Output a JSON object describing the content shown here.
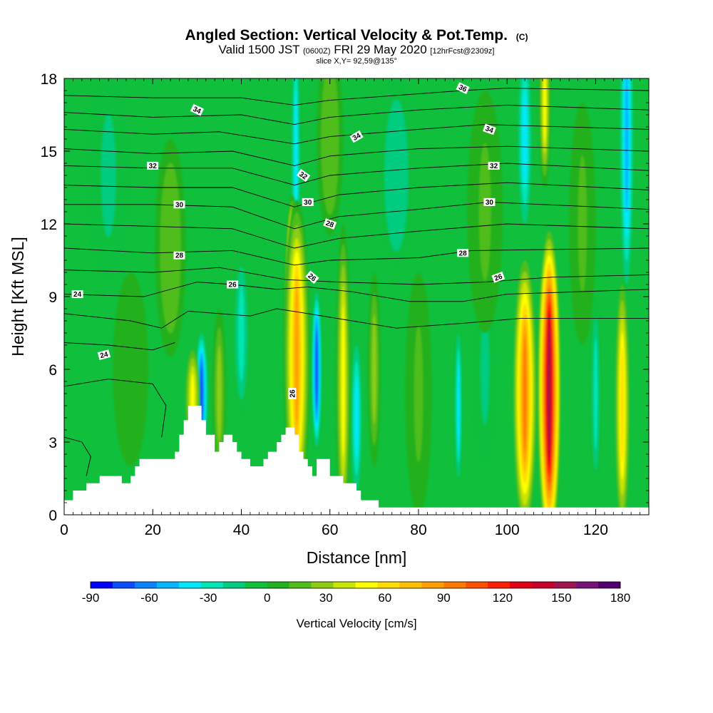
{
  "chart_data": {
    "type": "heatmap",
    "title": "Angled Section: Vertical Velocity & Pot.Temp.",
    "title_suffix": "(C)",
    "subtitle_main": "Valid 1500 JST",
    "subtitle_utc": "(0600Z)",
    "subtitle_date": "FRI 29 May 2020",
    "subtitle_fcst": "[12hrFcst@2309z]",
    "slice_label": "slice X,Y= 92,59@135°",
    "xlabel": "Distance [nm]",
    "ylabel": "Height [Kft MSL]",
    "xlim": [
      0,
      132
    ],
    "ylim": [
      0,
      18
    ],
    "x_ticks": [
      0,
      20,
      40,
      60,
      80,
      100,
      120
    ],
    "y_ticks": [
      0,
      3,
      6,
      9,
      12,
      15,
      18
    ],
    "colorbar": {
      "label": "Vertical Velocity [cm/s]",
      "range": [
        -90,
        180
      ],
      "ticks": [
        -90,
        -60,
        -30,
        0,
        30,
        60,
        90,
        120,
        150,
        180
      ],
      "colors": [
        "#0000ff",
        "#0a4cff",
        "#0a82ff",
        "#06b4ff",
        "#00e8ff",
        "#00e6b4",
        "#00cc80",
        "#10bf3c",
        "#22b11e",
        "#50bd1a",
        "#8ccd12",
        "#c8e600",
        "#ffff00",
        "#ffdc00",
        "#ffbe00",
        "#ffa000",
        "#ff7800",
        "#ff5000",
        "#ff1e00",
        "#e10014",
        "#c8002a",
        "#a01450",
        "#781478",
        "#50006e"
      ]
    },
    "terrain": [
      [
        0,
        0.6
      ],
      [
        2,
        0.6
      ],
      [
        2,
        1.0
      ],
      [
        5,
        1.0
      ],
      [
        5,
        1.3
      ],
      [
        8,
        1.3
      ],
      [
        8,
        1.6
      ],
      [
        13,
        1.6
      ],
      [
        13,
        1.3
      ],
      [
        15,
        1.3
      ],
      [
        15,
        1.6
      ],
      [
        16,
        1.6
      ],
      [
        16,
        2.0
      ],
      [
        17,
        2.0
      ],
      [
        17,
        2.3
      ],
      [
        25,
        2.3
      ],
      [
        25,
        2.6
      ],
      [
        26,
        2.6
      ],
      [
        26,
        3.3
      ],
      [
        27,
        3.3
      ],
      [
        27,
        3.9
      ],
      [
        28,
        3.9
      ],
      [
        28,
        4.5
      ],
      [
        31,
        4.5
      ],
      [
        31,
        3.9
      ],
      [
        32,
        3.9
      ],
      [
        32,
        3.3
      ],
      [
        34,
        3.3
      ],
      [
        34,
        2.6
      ],
      [
        35,
        2.6
      ],
      [
        35,
        3.0
      ],
      [
        36,
        3.0
      ],
      [
        36,
        3.3
      ],
      [
        38,
        3.3
      ],
      [
        38,
        3.0
      ],
      [
        39,
        3.0
      ],
      [
        39,
        2.6
      ],
      [
        40,
        2.6
      ],
      [
        40,
        2.3
      ],
      [
        42,
        2.3
      ],
      [
        42,
        2.0
      ],
      [
        45,
        2.0
      ],
      [
        45,
        2.3
      ],
      [
        46,
        2.3
      ],
      [
        46,
        2.6
      ],
      [
        48,
        2.6
      ],
      [
        48,
        3.0
      ],
      [
        49,
        3.0
      ],
      [
        49,
        3.3
      ],
      [
        50,
        3.3
      ],
      [
        50,
        3.6
      ],
      [
        52,
        3.6
      ],
      [
        52,
        3.3
      ],
      [
        53,
        3.3
      ],
      [
        53,
        2.6
      ],
      [
        54,
        2.6
      ],
      [
        54,
        2.3
      ],
      [
        55,
        2.3
      ],
      [
        55,
        2.0
      ],
      [
        56,
        2.0
      ],
      [
        56,
        1.6
      ],
      [
        57,
        1.6
      ],
      [
        57,
        2.3
      ],
      [
        60,
        2.3
      ],
      [
        60,
        1.6
      ],
      [
        63,
        1.6
      ],
      [
        63,
        1.3
      ],
      [
        66,
        1.3
      ],
      [
        66,
        1.0
      ],
      [
        67,
        1.0
      ],
      [
        67,
        0.6
      ],
      [
        71,
        0.6
      ],
      [
        71,
        0.3
      ],
      [
        132,
        0.3
      ]
    ],
    "updrafts": [
      {
        "x": 51.5,
        "z": 8.0,
        "w": 1.8,
        "h": 5.2,
        "v": 165
      },
      {
        "x": 52.5,
        "z": 6.5,
        "w": 3.0,
        "h": 6.5,
        "v": 85
      },
      {
        "x": 63,
        "z": 5.5,
        "w": 1.7,
        "h": 6.5,
        "v": 55
      },
      {
        "x": 109.5,
        "z": 5.2,
        "w": 2.6,
        "h": 6.5,
        "v": 150
      },
      {
        "x": 104,
        "z": 5.0,
        "w": 2.6,
        "h": 5.5,
        "v": 95
      },
      {
        "x": 126,
        "z": 4.5,
        "w": 1.6,
        "h": 5.0,
        "v": 60
      },
      {
        "x": 108.5,
        "z": 17.0,
        "w": 1.4,
        "h": 3.5,
        "v": 55
      },
      {
        "x": 29,
        "z": 4.8,
        "w": 1.6,
        "h": 2.0,
        "v": 45
      },
      {
        "x": 35,
        "z": 5.0,
        "w": 1.6,
        "h": 3.5,
        "v": 28
      },
      {
        "x": 70,
        "z": 6.0,
        "w": 1.5,
        "h": 4.0,
        "v": 25
      },
      {
        "x": 24,
        "z": 11.0,
        "w": 3.5,
        "h": 4.5,
        "v": 18
      },
      {
        "x": 60,
        "z": 15.5,
        "w": 3.0,
        "h": 4.0,
        "v": 18
      },
      {
        "x": 95,
        "z": 12.5,
        "w": 4.0,
        "h": 5.0,
        "v": 15
      },
      {
        "x": 117,
        "z": 12.0,
        "w": 3.0,
        "h": 5.0,
        "v": 15
      },
      {
        "x": 80,
        "z": 5.0,
        "w": 3.0,
        "h": 5.0,
        "v": 12
      },
      {
        "x": 15,
        "z": 6.0,
        "w": 4.0,
        "h": 4.0,
        "v": 10
      }
    ],
    "downdrafts": [
      {
        "x": 31,
        "z": 5.0,
        "w": 1.4,
        "h": 2.5,
        "v": -70
      },
      {
        "x": 57,
        "z": 6.0,
        "w": 1.3,
        "h": 3.5,
        "v": -75
      },
      {
        "x": 52.3,
        "z": 14.5,
        "w": 1.2,
        "h": 6.0,
        "v": -45
      },
      {
        "x": 127,
        "z": 15.5,
        "w": 1.5,
        "h": 6.0,
        "v": -50
      },
      {
        "x": 89,
        "z": 4.5,
        "w": 1.0,
        "h": 3.5,
        "v": -40
      },
      {
        "x": 104,
        "z": 15.5,
        "w": 1.5,
        "h": 3.5,
        "v": -35
      },
      {
        "x": 66,
        "z": 4.0,
        "w": 1.2,
        "h": 3.0,
        "v": -35
      },
      {
        "x": 120,
        "z": 5.0,
        "w": 1.2,
        "h": 4.0,
        "v": -30
      },
      {
        "x": 40,
        "z": 7.5,
        "w": 2.0,
        "h": 3.5,
        "v": -25
      },
      {
        "x": 75,
        "z": 14.0,
        "w": 4.0,
        "h": 4.0,
        "v": -20
      },
      {
        "x": 10,
        "z": 14.0,
        "w": 5.0,
        "h": 4.5,
        "v": -15
      },
      {
        "x": 95,
        "z": 6.0,
        "w": 3.0,
        "h": 4.0,
        "v": -15
      }
    ],
    "isentropes": [
      {
        "theta": 36,
        "pts": [
          [
            0,
            17.3
          ],
          [
            20,
            17.2
          ],
          [
            40,
            17.2
          ],
          [
            52,
            16.9
          ],
          [
            60,
            17.1
          ],
          [
            75,
            17.3
          ],
          [
            90,
            17.5
          ],
          [
            100,
            17.6
          ],
          [
            132,
            17.5
          ]
        ]
      },
      {
        "theta": 35,
        "pts": [
          [
            0,
            16.6
          ],
          [
            20,
            16.4
          ],
          [
            40,
            16.5
          ],
          [
            52,
            16.1
          ],
          [
            60,
            16.4
          ],
          [
            80,
            16.7
          ],
          [
            100,
            16.9
          ],
          [
            132,
            16.7
          ]
        ]
      },
      {
        "theta": 34,
        "pts": [
          [
            0,
            15.9
          ],
          [
            20,
            15.7
          ],
          [
            35,
            15.8
          ],
          [
            52,
            15.3
          ],
          [
            60,
            15.6
          ],
          [
            80,
            15.9
          ],
          [
            95,
            16.1
          ],
          [
            132,
            15.9
          ]
        ]
      },
      {
        "theta": 33,
        "pts": [
          [
            0,
            15.1
          ],
          [
            20,
            14.9
          ],
          [
            38,
            15.0
          ],
          [
            52,
            14.4
          ],
          [
            60,
            14.8
          ],
          [
            80,
            15.1
          ],
          [
            100,
            15.2
          ],
          [
            132,
            15.0
          ]
        ]
      },
      {
        "theta": 32,
        "pts": [
          [
            0,
            14.4
          ],
          [
            20,
            14.3
          ],
          [
            38,
            14.3
          ],
          [
            52,
            13.6
          ],
          [
            60,
            14.0
          ],
          [
            80,
            14.3
          ],
          [
            100,
            14.5
          ],
          [
            132,
            14.2
          ]
        ]
      },
      {
        "theta": 31,
        "pts": [
          [
            0,
            13.6
          ],
          [
            20,
            13.5
          ],
          [
            38,
            13.5
          ],
          [
            52,
            12.7
          ],
          [
            62,
            13.2
          ],
          [
            80,
            13.5
          ],
          [
            100,
            13.7
          ],
          [
            132,
            13.4
          ]
        ]
      },
      {
        "theta": 30,
        "pts": [
          [
            0,
            12.8
          ],
          [
            20,
            12.8
          ],
          [
            38,
            12.7
          ],
          [
            52,
            11.8
          ],
          [
            62,
            12.3
          ],
          [
            80,
            12.6
          ],
          [
            96,
            12.9
          ],
          [
            132,
            12.6
          ]
        ]
      },
      {
        "theta": 29,
        "pts": [
          [
            0,
            12.0
          ],
          [
            20,
            11.9
          ],
          [
            38,
            11.8
          ],
          [
            52,
            11.0
          ],
          [
            62,
            11.4
          ],
          [
            80,
            11.7
          ],
          [
            100,
            12.0
          ],
          [
            132,
            11.8
          ]
        ]
      },
      {
        "theta": 28,
        "pts": [
          [
            0,
            11.0
          ],
          [
            20,
            10.8
          ],
          [
            38,
            10.9
          ],
          [
            52,
            10.3
          ],
          [
            60,
            10.5
          ],
          [
            80,
            10.6
          ],
          [
            92,
            10.9
          ],
          [
            132,
            11.0
          ]
        ]
      },
      {
        "theta": 27,
        "pts": [
          [
            0,
            10.1
          ],
          [
            20,
            10.0
          ],
          [
            35,
            10.2
          ],
          [
            50,
            9.7
          ],
          [
            62,
            9.6
          ],
          [
            80,
            9.5
          ],
          [
            95,
            9.6
          ],
          [
            110,
            9.8
          ],
          [
            132,
            9.9
          ]
        ]
      },
      {
        "theta": 26,
        "pts": [
          [
            0,
            9.1
          ],
          [
            18,
            9.0
          ],
          [
            30,
            9.6
          ],
          [
            38,
            9.5
          ],
          [
            48,
            9.3
          ],
          [
            55,
            9.4
          ],
          [
            65,
            9.2
          ],
          [
            78,
            8.8
          ],
          [
            90,
            8.8
          ],
          [
            100,
            9.1
          ],
          [
            132,
            9.3
          ]
        ]
      },
      {
        "theta": 25,
        "pts": [
          [
            0,
            8.3
          ],
          [
            15,
            8.0
          ],
          [
            22,
            7.7
          ],
          [
            28,
            8.4
          ],
          [
            35,
            8.3
          ],
          [
            42,
            8.2
          ],
          [
            48,
            8.5
          ],
          [
            55,
            8.3
          ],
          [
            65,
            8.0
          ],
          [
            75,
            7.7
          ],
          [
            90,
            7.9
          ],
          [
            103,
            8.1
          ],
          [
            132,
            8.1
          ]
        ]
      },
      {
        "theta": 24,
        "pts": [
          [
            0,
            7.1
          ],
          [
            10,
            7.0
          ],
          [
            20,
            6.8
          ],
          [
            25,
            7.1
          ]
        ]
      },
      {
        "theta": 23,
        "pts": [
          [
            0,
            5.3
          ],
          [
            10,
            5.6
          ],
          [
            20,
            5.4
          ],
          [
            23,
            4.5
          ],
          [
            22,
            3.2
          ]
        ]
      },
      {
        "theta": 22,
        "pts": [
          [
            0,
            3.2
          ],
          [
            4,
            3.0
          ],
          [
            6,
            2.4
          ],
          [
            5,
            1.6
          ]
        ]
      }
    ],
    "contour_labels": [
      {
        "text": "36",
        "x": 90,
        "z": 17.6,
        "angle": 25
      },
      {
        "text": "34",
        "x": 30,
        "z": 16.7,
        "angle": 25
      },
      {
        "text": "34",
        "x": 66,
        "z": 15.6,
        "angle": -30
      },
      {
        "text": "34",
        "x": 96,
        "z": 15.9,
        "angle": 20
      },
      {
        "text": "32",
        "x": 20,
        "z": 14.4,
        "angle": 0
      },
      {
        "text": "32",
        "x": 54,
        "z": 14.0,
        "angle": 35
      },
      {
        "text": "32",
        "x": 97,
        "z": 14.4,
        "angle": 0
      },
      {
        "text": "30",
        "x": 26,
        "z": 12.8,
        "angle": 0
      },
      {
        "text": "30",
        "x": 55,
        "z": 12.9,
        "angle": 0
      },
      {
        "text": "30",
        "x": 96,
        "z": 12.9,
        "angle": 0
      },
      {
        "text": "28",
        "x": 60,
        "z": 12.0,
        "angle": 20
      },
      {
        "text": "28",
        "x": 26,
        "z": 10.7,
        "angle": 0
      },
      {
        "text": "28",
        "x": 90,
        "z": 10.8,
        "angle": 0
      },
      {
        "text": "26",
        "x": 56,
        "z": 9.8,
        "angle": 40
      },
      {
        "text": "26",
        "x": 38,
        "z": 9.5,
        "angle": 0
      },
      {
        "text": "26",
        "x": 98,
        "z": 9.8,
        "angle": -20
      },
      {
        "text": "26",
        "x": 51.5,
        "z": 5.0,
        "angle": -90
      },
      {
        "text": "24",
        "x": 3,
        "z": 9.1,
        "angle": 0
      },
      {
        "text": "24",
        "x": 9,
        "z": 6.6,
        "angle": -15
      }
    ],
    "colors": {
      "background": "#10bf3c",
      "terrain": "#ffffff",
      "contour": "#000000"
    }
  }
}
